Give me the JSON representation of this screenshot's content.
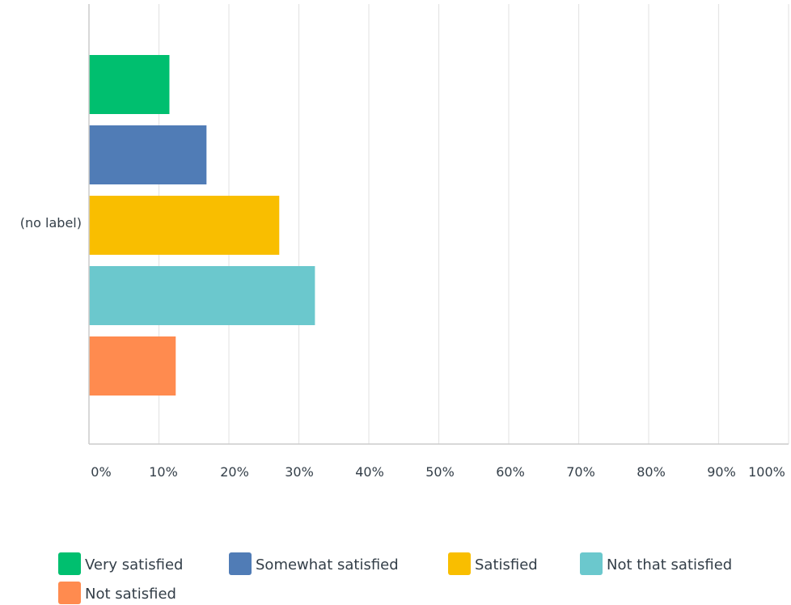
{
  "chart_data": {
    "type": "bar",
    "orientation": "horizontal",
    "categories": [
      "(no label)"
    ],
    "series": [
      {
        "name": "Very satisfied",
        "values": [
          11.5
        ],
        "color": "#00bf6f"
      },
      {
        "name": "Somewhat satisfied",
        "values": [
          16.8
        ],
        "color": "#507cb6"
      },
      {
        "name": "Satisfied",
        "values": [
          27.2
        ],
        "color": "#f9be00"
      },
      {
        "name": "Not that satisfied",
        "values": [
          32.3
        ],
        "color": "#6bc8cd"
      },
      {
        "name": "Not satisfied",
        "values": [
          12.4
        ],
        "color": "#ff8b4f"
      }
    ],
    "x_ticks": [
      "0%",
      "10%",
      "20%",
      "30%",
      "40%",
      "50%",
      "60%",
      "70%",
      "80%",
      "90%",
      "100%"
    ],
    "xlim": [
      0,
      100
    ],
    "grid": true,
    "legend_position": "bottom"
  },
  "colors": {
    "gridline": "#e5e5e5",
    "axis": "#cccccc",
    "text": "#333e48"
  }
}
